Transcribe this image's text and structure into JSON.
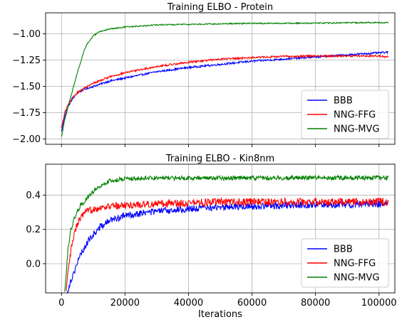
{
  "chart_data": [
    {
      "type": "line",
      "title": "Training ELBO - Protein",
      "xlabel": "",
      "ylabel": "",
      "xlim": [
        -5000,
        105000
      ],
      "ylim": [
        -2.05,
        -0.8
      ],
      "x_ticks": [
        0,
        20000,
        40000,
        60000,
        80000,
        100000
      ],
      "x_tick_labels_visible": false,
      "y_ticks": [
        -2.0,
        -1.75,
        -1.5,
        -1.25,
        -1.0
      ],
      "y_tick_labels": [
        "−2.00",
        "−1.75",
        "−1.50",
        "−1.25",
        "−1.00"
      ],
      "grid": true,
      "legend_position": "lower-right",
      "series": [
        {
          "name": "BBB",
          "color": "#0000ff",
          "noise": 0.009,
          "x": [
            0,
            1000,
            2000,
            3000,
            4000,
            5000,
            7000,
            10000,
            15000,
            20000,
            30000,
            40000,
            50000,
            60000,
            70000,
            80000,
            90000,
            100000,
            103000
          ],
          "y": [
            -1.93,
            -1.78,
            -1.7,
            -1.64,
            -1.6,
            -1.56,
            -1.53,
            -1.5,
            -1.45,
            -1.42,
            -1.36,
            -1.32,
            -1.29,
            -1.26,
            -1.24,
            -1.22,
            -1.2,
            -1.18,
            -1.175
          ]
        },
        {
          "name": "NNG-FFG",
          "color": "#ff0000",
          "noise": 0.009,
          "x": [
            0,
            1000,
            2000,
            3000,
            4000,
            5000,
            7000,
            10000,
            15000,
            20000,
            30000,
            40000,
            50000,
            60000,
            70000,
            80000,
            90000,
            100000,
            103000
          ],
          "y": [
            -1.9,
            -1.75,
            -1.68,
            -1.63,
            -1.59,
            -1.56,
            -1.52,
            -1.47,
            -1.41,
            -1.37,
            -1.31,
            -1.27,
            -1.24,
            -1.225,
            -1.215,
            -1.21,
            -1.21,
            -1.21,
            -1.22
          ]
        },
        {
          "name": "NNG-MVG",
          "color": "#008000",
          "noise": 0.006,
          "x": [
            0,
            1000,
            2000,
            3000,
            4000,
            5000,
            6000,
            7000,
            8000,
            10000,
            12000,
            15000,
            20000,
            25000,
            30000,
            40000,
            50000,
            60000,
            70000,
            80000,
            90000,
            100000,
            103000
          ],
          "y": [
            -1.98,
            -1.82,
            -1.7,
            -1.59,
            -1.48,
            -1.37,
            -1.27,
            -1.17,
            -1.1,
            -1.02,
            -0.98,
            -0.955,
            -0.935,
            -0.925,
            -0.915,
            -0.91,
            -0.905,
            -0.9,
            -0.9,
            -0.898,
            -0.895,
            -0.893,
            -0.893
          ]
        }
      ]
    },
    {
      "type": "line",
      "title": "Training ELBO - Kin8nm",
      "xlabel": "Iterations",
      "ylabel": "",
      "xlim": [
        -5000,
        105000
      ],
      "ylim": [
        -0.17,
        0.58
      ],
      "x_ticks": [
        0,
        20000,
        40000,
        60000,
        80000,
        100000
      ],
      "x_tick_labels": [
        "0",
        "20000",
        "40000",
        "60000",
        "80000",
        "100000"
      ],
      "y_ticks": [
        0.0,
        0.2,
        0.4
      ],
      "y_tick_labels": [
        "0.0",
        "0.2",
        "0.4"
      ],
      "grid": true,
      "legend_position": "lower-right",
      "series": [
        {
          "name": "BBB",
          "color": "#0000ff",
          "noise": 0.02,
          "x": [
            1800,
            2500,
            3500,
            4500,
            6000,
            8000,
            10000,
            12000,
            15000,
            20000,
            25000,
            30000,
            40000,
            50000,
            60000,
            70000,
            80000,
            90000,
            100000,
            103000
          ],
          "y": [
            -0.17,
            -0.12,
            -0.07,
            -0.02,
            0.05,
            0.12,
            0.17,
            0.21,
            0.25,
            0.28,
            0.295,
            0.305,
            0.32,
            0.33,
            0.335,
            0.34,
            0.345,
            0.345,
            0.35,
            0.35
          ]
        },
        {
          "name": "NNG-FFG",
          "color": "#ff0000",
          "noise": 0.022,
          "x": [
            1500,
            2000,
            3000,
            4000,
            5000,
            6000,
            8000,
            10000,
            15000,
            20000,
            30000,
            40000,
            50000,
            60000,
            70000,
            80000,
            90000,
            100000,
            103000
          ],
          "y": [
            -0.17,
            -0.06,
            0.08,
            0.17,
            0.23,
            0.27,
            0.3,
            0.32,
            0.335,
            0.34,
            0.35,
            0.355,
            0.36,
            0.36,
            0.36,
            0.36,
            0.36,
            0.36,
            0.36
          ]
        },
        {
          "name": "NNG-MVG",
          "color": "#008000",
          "noise": 0.013,
          "x": [
            1000,
            1500,
            2000,
            3000,
            4000,
            5000,
            6000,
            8000,
            10000,
            12000,
            15000,
            20000,
            30000,
            40000,
            50000,
            60000,
            70000,
            80000,
            90000,
            100000,
            103000
          ],
          "y": [
            -0.17,
            -0.05,
            0.08,
            0.2,
            0.26,
            0.3,
            0.34,
            0.38,
            0.42,
            0.45,
            0.48,
            0.495,
            0.5,
            0.5,
            0.5,
            0.5,
            0.5,
            0.5,
            0.5,
            0.5,
            0.5
          ]
        }
      ]
    }
  ]
}
